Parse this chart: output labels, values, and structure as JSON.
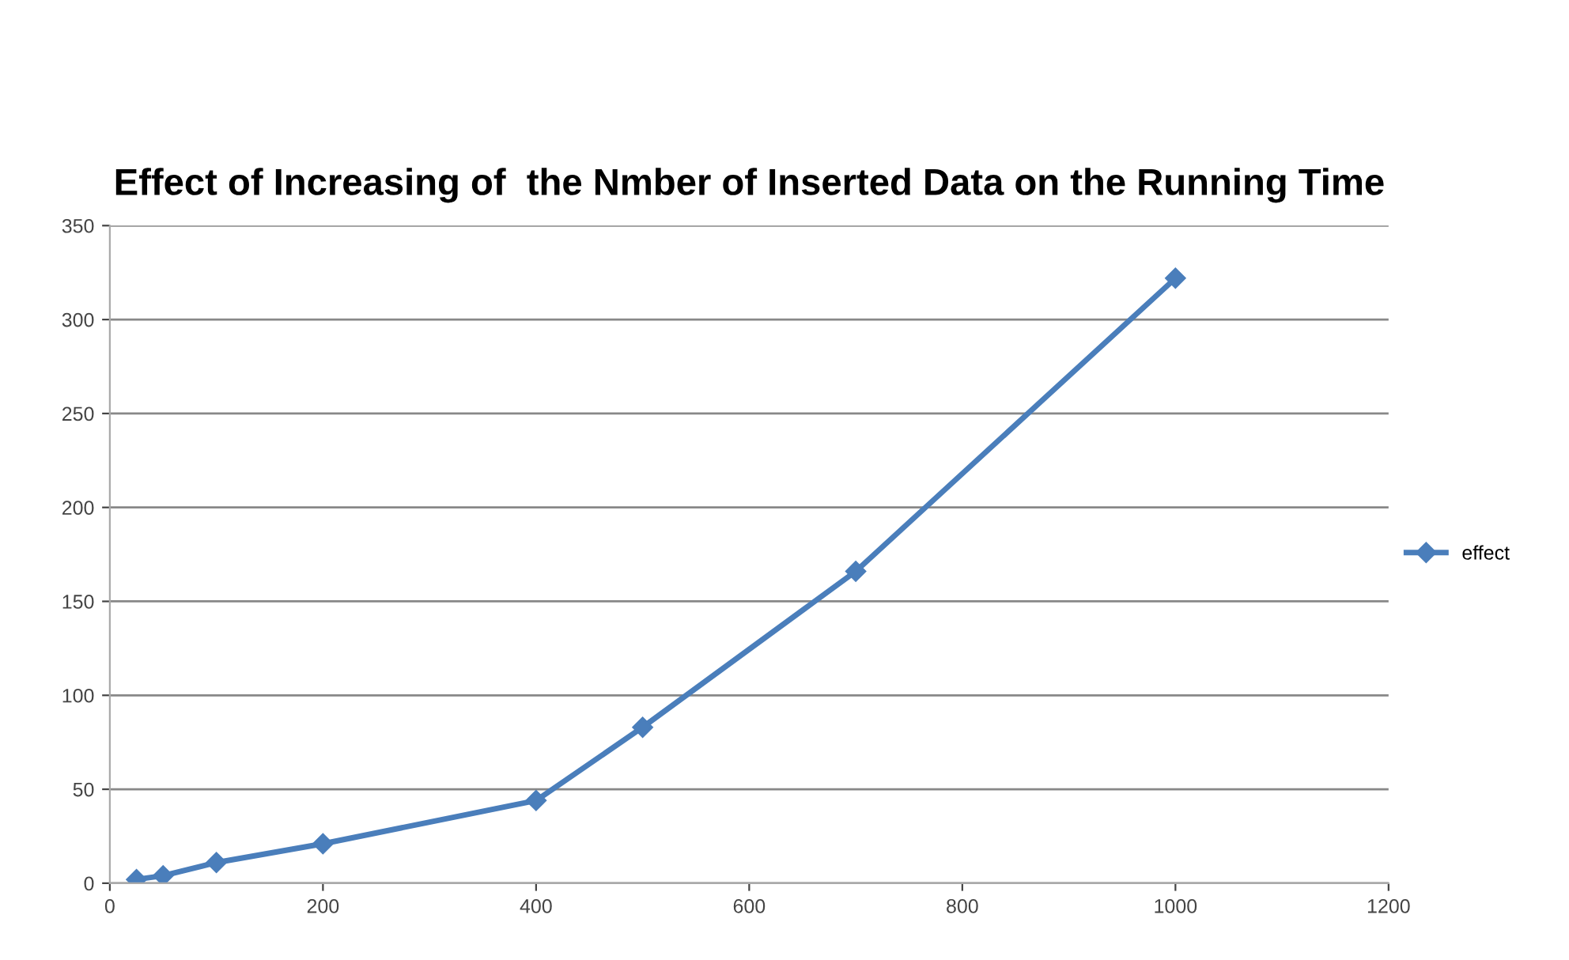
{
  "chart_data": {
    "type": "line",
    "title": "Effect of Increasing of  the Nmber of Inserted Data on the Running Time",
    "x": [
      25,
      50,
      100,
      200,
      400,
      500,
      700,
      1000
    ],
    "series": [
      {
        "name": "effect",
        "color": "#4a7ebb",
        "values": [
          2,
          4,
          11,
          21,
          44,
          83,
          166,
          322
        ]
      }
    ],
    "xlim": [
      0,
      1200
    ],
    "xticks": [
      0,
      200,
      400,
      600,
      800,
      1000,
      1200
    ],
    "ylim": [
      0,
      350
    ],
    "yticks": [
      0,
      50,
      100,
      150,
      200,
      250,
      300,
      350
    ],
    "grid": "y",
    "legend": "right",
    "marker": "diamond",
    "line_style": "solid"
  }
}
